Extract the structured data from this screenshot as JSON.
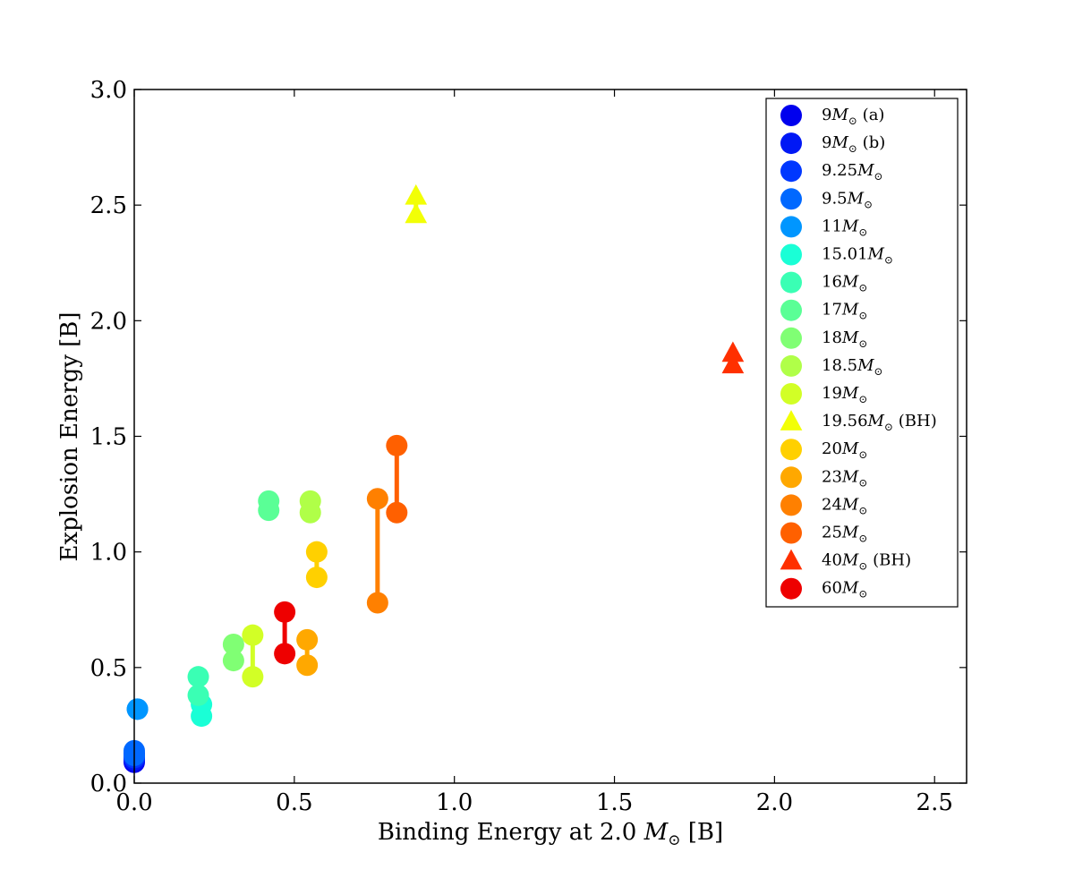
{
  "chart_data": {
    "type": "scatter",
    "title": "",
    "xlabel_text": "Binding Energy at 2.0 ",
    "xlabel_symbol": "M",
    "xlabel_sub": "⊙",
    "xlabel_unit": " [B]",
    "ylabel": "Explosion Energy [B]",
    "xlim": [
      0.0,
      2.6
    ],
    "ylim": [
      0.0,
      3.0
    ],
    "xticks": [
      0.0,
      0.5,
      1.0,
      1.5,
      2.0,
      2.5
    ],
    "yticks": [
      0.0,
      0.5,
      1.0,
      1.5,
      2.0,
      2.5,
      3.0
    ],
    "xtick_labels": [
      "0.0",
      "0.5",
      "1.0",
      "1.5",
      "2.0",
      "2.5"
    ],
    "ytick_labels": [
      "0.0",
      "0.5",
      "1.0",
      "1.5",
      "2.0",
      "2.5",
      "3.0"
    ],
    "grid": false,
    "legend_position": "top-right",
    "series": [
      {
        "name": "9M⊙ (a)",
        "legend": {
          "pre": "9",
          "post": " (a)"
        },
        "color": "#0000ee",
        "marker": "circle",
        "points": [
          [
            0.0,
            0.09
          ],
          [
            0.0,
            0.1
          ]
        ]
      },
      {
        "name": "9M⊙ (b)",
        "legend": {
          "pre": "9",
          "post": " (b)"
        },
        "color": "#0018f5",
        "marker": "circle",
        "points": [
          [
            0.0,
            0.1
          ],
          [
            0.0,
            0.12
          ]
        ]
      },
      {
        "name": "9.25M⊙",
        "legend": {
          "pre": "9.25",
          "post": ""
        },
        "color": "#0038ff",
        "marker": "circle",
        "points": [
          [
            0.0,
            0.11
          ],
          [
            0.0,
            0.13
          ]
        ]
      },
      {
        "name": "9.5M⊙",
        "legend": {
          "pre": "9.5",
          "post": ""
        },
        "color": "#0068ff",
        "marker": "circle",
        "points": [
          [
            0.0,
            0.12
          ],
          [
            0.0,
            0.14
          ]
        ]
      },
      {
        "name": "11M⊙",
        "legend": {
          "pre": "11",
          "post": ""
        },
        "color": "#0096ff",
        "marker": "circle",
        "points": [
          [
            0.01,
            0.32
          ],
          [
            0.01,
            0.32
          ]
        ]
      },
      {
        "name": "15.01M⊙",
        "legend": {
          "pre": "15.01",
          "post": ""
        },
        "color": "#1affd6",
        "marker": "circle",
        "points": [
          [
            0.21,
            0.29
          ],
          [
            0.21,
            0.34
          ]
        ]
      },
      {
        "name": "16M⊙",
        "legend": {
          "pre": "16",
          "post": ""
        },
        "color": "#3affb4",
        "marker": "circle",
        "points": [
          [
            0.2,
            0.38
          ],
          [
            0.2,
            0.46
          ]
        ]
      },
      {
        "name": "17M⊙",
        "legend": {
          "pre": "17",
          "post": ""
        },
        "color": "#5aff96",
        "marker": "circle",
        "points": [
          [
            0.42,
            1.18
          ],
          [
            0.42,
            1.22
          ]
        ]
      },
      {
        "name": "18M⊙",
        "legend": {
          "pre": "18",
          "post": ""
        },
        "color": "#80ff74",
        "marker": "circle",
        "points": [
          [
            0.31,
            0.53
          ],
          [
            0.31,
            0.6
          ]
        ]
      },
      {
        "name": "18.5M⊙",
        "legend": {
          "pre": "18.5",
          "post": ""
        },
        "color": "#b0ff48",
        "marker": "circle",
        "points": [
          [
            0.55,
            1.17
          ],
          [
            0.55,
            1.22
          ]
        ]
      },
      {
        "name": "19M⊙",
        "legend": {
          "pre": "19",
          "post": ""
        },
        "color": "#d2ff26",
        "marker": "circle",
        "points": [
          [
            0.37,
            0.46
          ],
          [
            0.37,
            0.64
          ]
        ]
      },
      {
        "name": "19.56M⊙ (BH)",
        "legend": {
          "pre": "19.56",
          "post": " (BH)"
        },
        "color": "#f2ff06",
        "marker": "triangle",
        "points": [
          [
            0.88,
            2.46
          ],
          [
            0.88,
            2.54
          ]
        ]
      },
      {
        "name": "20M⊙",
        "legend": {
          "pre": "20",
          "post": ""
        },
        "color": "#ffd000",
        "marker": "circle",
        "points": [
          [
            0.57,
            0.89
          ],
          [
            0.57,
            1.0
          ]
        ]
      },
      {
        "name": "23M⊙",
        "legend": {
          "pre": "23",
          "post": ""
        },
        "color": "#ffa800",
        "marker": "circle",
        "points": [
          [
            0.54,
            0.51
          ],
          [
            0.54,
            0.62
          ]
        ]
      },
      {
        "name": "24M⊙",
        "legend": {
          "pre": "24",
          "post": ""
        },
        "color": "#ff8000",
        "marker": "circle",
        "points": [
          [
            0.76,
            0.78
          ],
          [
            0.76,
            1.23
          ]
        ]
      },
      {
        "name": "25M⊙",
        "legend": {
          "pre": "25",
          "post": ""
        },
        "color": "#ff6000",
        "marker": "circle",
        "points": [
          [
            0.82,
            1.17
          ],
          [
            0.82,
            1.46
          ]
        ]
      },
      {
        "name": "40M⊙ (BH)",
        "legend": {
          "pre": "40",
          "post": " (BH)"
        },
        "color": "#ff3000",
        "marker": "triangle",
        "points": [
          [
            1.87,
            1.81
          ],
          [
            1.87,
            1.86
          ]
        ]
      },
      {
        "name": "60M⊙",
        "legend": {
          "pre": "60",
          "post": ""
        },
        "color": "#ee0000",
        "marker": "circle",
        "points": [
          [
            0.47,
            0.56
          ],
          [
            0.47,
            0.74
          ]
        ]
      }
    ]
  }
}
